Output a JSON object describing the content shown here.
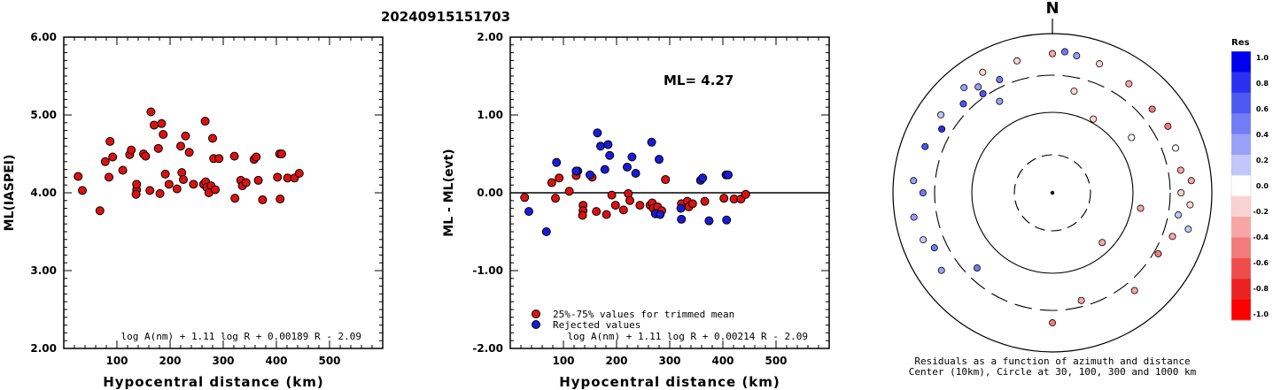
{
  "event_id": "20240915151703",
  "north_label": "N",
  "chart_data": [
    {
      "type": "scatter",
      "ylabel": "ML(IASPEI)",
      "xlabel": "Hypocentral distance (km)",
      "xlim": [
        0,
        600
      ],
      "ylim": [
        2.0,
        6.0
      ],
      "xticks": [
        100,
        200,
        300,
        400,
        500
      ],
      "ytick_labels": [
        "2.00",
        "3.00",
        "4.00",
        "5.00",
        "6.00"
      ],
      "formula": "log A(nm) + 1.11 log R + 0.00189 R - 2.09",
      "points": [
        [
          27,
          4.21
        ],
        [
          35,
          4.03
        ],
        [
          68,
          3.77
        ],
        [
          78,
          4.4
        ],
        [
          87,
          4.66
        ],
        [
          85,
          4.2
        ],
        [
          92,
          4.46
        ],
        [
          111,
          4.29
        ],
        [
          124,
          4.49
        ],
        [
          127,
          4.55
        ],
        [
          137,
          4.04
        ],
        [
          137,
          4.11
        ],
        [
          136,
          3.98
        ],
        [
          150,
          4.5
        ],
        [
          154,
          4.47
        ],
        [
          162,
          4.03
        ],
        [
          164,
          5.04
        ],
        [
          170,
          4.87
        ],
        [
          178,
          4.57
        ],
        [
          184,
          4.89
        ],
        [
          181,
          3.99
        ],
        [
          187,
          4.75
        ],
        [
          191,
          4.24
        ],
        [
          198,
          4.11
        ],
        [
          213,
          4.05
        ],
        [
          220,
          4.6
        ],
        [
          222,
          4.26
        ],
        [
          225,
          4.17
        ],
        [
          229,
          4.73
        ],
        [
          236,
          4.52
        ],
        [
          244,
          4.11
        ],
        [
          263,
          4.11
        ],
        [
          266,
          4.92
        ],
        [
          267,
          4.14
        ],
        [
          269,
          4.07
        ],
        [
          277,
          4.09
        ],
        [
          273,
          4.0
        ],
        [
          280,
          4.7
        ],
        [
          282,
          4.44
        ],
        [
          285,
          4.04
        ],
        [
          292,
          4.44
        ],
        [
          322,
          3.93
        ],
        [
          321,
          4.47
        ],
        [
          333,
          4.16
        ],
        [
          336,
          4.09
        ],
        [
          343,
          4.13
        ],
        [
          358,
          4.43
        ],
        [
          362,
          4.46
        ],
        [
          366,
          4.16
        ],
        [
          374,
          3.91
        ],
        [
          402,
          4.2
        ],
        [
          406,
          4.5
        ],
        [
          407,
          3.92
        ],
        [
          410,
          4.5
        ],
        [
          421,
          4.19
        ],
        [
          434,
          4.19
        ],
        [
          443,
          4.25
        ]
      ]
    },
    {
      "type": "scatter",
      "ylabel": "ML - ML(evt)",
      "xlabel": "Hypocentral distance (km)",
      "xlim": [
        0,
        600
      ],
      "ylim": [
        -2.0,
        2.0
      ],
      "xticks": [
        100,
        200,
        300,
        400,
        500
      ],
      "ytick_labels": [
        "-2.00",
        "-1.00",
        "0.00",
        "1.00",
        "2.00"
      ],
      "formula": "log A(nm) + 1.11 log R + 0.00214 R - 2.09",
      "annotation": "ML= 4.27",
      "legend": [
        "25%-75% values for trimmed mean",
        "Rejected values"
      ],
      "series_colors": [
        "#dd1111",
        "#1a1adb"
      ],
      "points_trimmed": [
        [
          27,
          -0.06
        ],
        [
          78,
          0.13
        ],
        [
          85,
          -0.07
        ],
        [
          92,
          0.19
        ],
        [
          111,
          0.02
        ],
        [
          124,
          0.22
        ],
        [
          137,
          -0.16
        ],
        [
          137,
          -0.23
        ],
        [
          136,
          -0.29
        ],
        [
          154,
          0.2
        ],
        [
          162,
          -0.24
        ],
        [
          181,
          -0.28
        ],
        [
          191,
          -0.03
        ],
        [
          198,
          -0.16
        ],
        [
          213,
          -0.22
        ],
        [
          222,
          -0.01
        ],
        [
          225,
          -0.1
        ],
        [
          244,
          -0.16
        ],
        [
          263,
          -0.16
        ],
        [
          267,
          -0.13
        ],
        [
          269,
          -0.2
        ],
        [
          277,
          -0.18
        ],
        [
          285,
          -0.23
        ],
        [
          292,
          0.17
        ],
        [
          322,
          -0.14
        ],
        [
          333,
          -0.11
        ],
        [
          336,
          -0.18
        ],
        [
          343,
          -0.14
        ],
        [
          366,
          -0.11
        ],
        [
          402,
          -0.07
        ],
        [
          421,
          -0.08
        ],
        [
          434,
          -0.08
        ],
        [
          443,
          -0.02
        ]
      ],
      "points_rejected": [
        [
          35,
          -0.24
        ],
        [
          68,
          -0.5
        ],
        [
          87,
          0.39
        ],
        [
          127,
          0.28
        ],
        [
          124,
          0.28
        ],
        [
          150,
          0.23
        ],
        [
          164,
          0.77
        ],
        [
          170,
          0.6
        ],
        [
          178,
          0.3
        ],
        [
          184,
          0.62
        ],
        [
          187,
          0.48
        ],
        [
          220,
          0.33
        ],
        [
          229,
          0.46
        ],
        [
          236,
          0.25
        ],
        [
          266,
          0.65
        ],
        [
          273,
          -0.27
        ],
        [
          280,
          0.43
        ],
        [
          282,
          -0.28
        ],
        [
          321,
          -0.2
        ],
        [
          322,
          -0.34
        ],
        [
          358,
          0.16
        ],
        [
          362,
          0.19
        ],
        [
          374,
          -0.36
        ],
        [
          406,
          0.23
        ],
        [
          407,
          -0.35
        ],
        [
          410,
          0.23
        ]
      ]
    },
    {
      "type": "scatter",
      "subtype": "polar",
      "caption": [
        "Residuals as a function of azimuth and distance",
        "Center (10km), Circle at 30, 100, 300 and 1000 km"
      ],
      "colorbar": {
        "title": "Res",
        "tick_labels": [
          "1.0",
          "0.8",
          "0.6",
          "0.4",
          "0.2",
          "0.0",
          "-0.2",
          "-0.4",
          "-0.6",
          "-0.8",
          "-1.0"
        ],
        "colors": [
          "#0000ee",
          "#2a30f0",
          "#4d57f2",
          "#717cf5",
          "#98a0f8",
          "#c2c7fb",
          "#ffffff",
          "#fbd2d2",
          "#f7a6a6",
          "#f37b7b",
          "#ef4d4d",
          "#ec2222",
          "#ff0000"
        ]
      },
      "circles_km": [
        30,
        100,
        300,
        1000
      ],
      "points": [
        {
          "az": 29,
          "dist": 112,
          "res": -0.12
        },
        {
          "az": 12,
          "dist": 200,
          "res": -0.1
        },
        {
          "az": -30,
          "dist": 210,
          "res": 0.35
        },
        {
          "az": -35,
          "dist": 330,
          "res": 0.6
        },
        {
          "az": 55,
          "dist": 160,
          "res": -0.02
        },
        {
          "az": 100,
          "dist": 130,
          "res": -0.3
        },
        {
          "az": 135,
          "dist": 75,
          "res": -0.35
        },
        {
          "az": 165,
          "dist": 250,
          "res": -0.4
        },
        {
          "az": 225,
          "dist": 215,
          "res": 0.55
        },
        {
          "az": 270,
          "dist": 420,
          "res": 0.45
        },
        {
          "az": 300,
          "dist": 400,
          "res": 0.8
        },
        {
          "az": 315,
          "dist": 380,
          "res": 0.6
        },
        {
          "az": 325,
          "dist": 420,
          "res": 0.3
        },
        {
          "az": 335,
          "dist": 370,
          "res": 0.5
        },
        {
          "az": 345,
          "dist": 520,
          "res": -0.1
        },
        {
          "az": 0,
          "dist": 560,
          "res": -0.3
        },
        {
          "az": 10,
          "dist": 560,
          "res": 0.4
        },
        {
          "az": 20,
          "dist": 530,
          "res": -0.1
        },
        {
          "az": 35,
          "dist": 470,
          "res": -0.3
        },
        {
          "az": 50,
          "dist": 430,
          "res": -0.5
        },
        {
          "az": 60,
          "dist": 470,
          "res": -0.5
        },
        {
          "az": 70,
          "dist": 440,
          "res": 0.0
        },
        {
          "az": 80,
          "dist": 430,
          "res": -0.4
        },
        {
          "az": 90,
          "dist": 410,
          "res": -0.15
        },
        {
          "az": 100,
          "dist": 400,
          "res": 0.2
        },
        {
          "az": 110,
          "dist": 400,
          "res": -0.3
        },
        {
          "az": 120,
          "dist": 340,
          "res": -0.5
        },
        {
          "az": 140,
          "dist": 400,
          "res": -0.4
        },
        {
          "az": 180,
          "dist": 430,
          "res": -0.5
        },
        {
          "az": 245,
          "dist": 430,
          "res": 0.5
        },
        {
          "az": 260,
          "dist": 580,
          "res": 0.4
        },
        {
          "az": 275,
          "dist": 560,
          "res": 0.3
        },
        {
          "az": 290,
          "dist": 500,
          "res": 0.6
        },
        {
          "az": 305,
          "dist": 510,
          "res": 0.2
        },
        {
          "az": 320,
          "dist": 530,
          "res": 0.4
        },
        {
          "az": 330,
          "dist": 560,
          "res": -0.2
        },
        {
          "az": 5,
          "dist": 600,
          "res": 0.5
        },
        {
          "az": 85,
          "dist": 560,
          "res": -0.3
        },
        {
          "az": 95,
          "dist": 540,
          "res": -0.2
        },
        {
          "az": 105,
          "dist": 580,
          "res": 0.1
        },
        {
          "az": 235,
          "dist": 500,
          "res": 0.3
        },
        {
          "az": 250,
          "dist": 530,
          "res": 0.2
        }
      ]
    }
  ]
}
